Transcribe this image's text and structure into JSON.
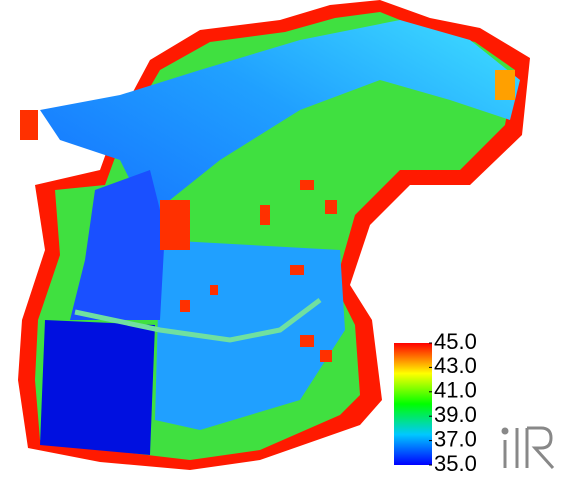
{
  "legend": {
    "range": [
      35,
      45
    ],
    "ticks": [
      {
        "value": 45,
        "label": "45.0"
      },
      {
        "value": 43,
        "label": "43.0"
      },
      {
        "value": 41,
        "label": "41.0"
      },
      {
        "value": 39,
        "label": "39.0"
      },
      {
        "value": 37,
        "label": "37.0"
      },
      {
        "value": 35,
        "label": "35.0"
      }
    ],
    "colors": [
      "#0000ff",
      "#00c8ff",
      "#00ff00",
      "#ffff00",
      "#ff0000"
    ]
  }
}
